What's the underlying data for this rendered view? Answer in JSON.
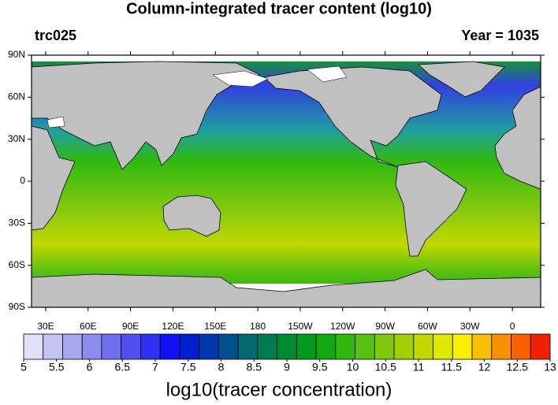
{
  "chart_data": {
    "type": "map",
    "title": "Column-integrated tracer content (log10)",
    "left_label": "trc025",
    "right_label": "Year = 1035",
    "lonlim": [
      20,
      380
    ],
    "latlim": [
      -90,
      90
    ],
    "latticks": [
      {
        "value": 90,
        "label": "90N"
      },
      {
        "value": 60,
        "label": "60N"
      },
      {
        "value": 30,
        "label": "30N"
      },
      0,
      {
        "value": -30,
        "label": "30S"
      },
      {
        "value": -60,
        "label": "60S"
      },
      {
        "value": -90,
        "label": "90S"
      }
    ],
    "lonticks": [
      {
        "value": 30,
        "label": "30E"
      },
      {
        "value": 60,
        "label": "60E"
      },
      {
        "value": 90,
        "label": "90E"
      },
      {
        "value": 120,
        "label": "120E"
      },
      {
        "value": 150,
        "label": "150E"
      },
      180,
      {
        "value": 210,
        "label": "150W"
      },
      {
        "value": 240,
        "label": "120W"
      },
      {
        "value": 270,
        "label": "90W"
      },
      {
        "value": 300,
        "label": "60W"
      },
      {
        "value": 330,
        "label": "30W"
      },
      {
        "value": 360,
        "label": "0"
      }
    ],
    "colorbar": {
      "title": "log10(tracer concentration)",
      "lim": [
        5,
        13
      ],
      "ticks": [
        5,
        5.5,
        6,
        6.5,
        7,
        7.5,
        8,
        8.5,
        9,
        9.5,
        10,
        10.5,
        11,
        11.5,
        12,
        12.5,
        13
      ],
      "colors": [
        "#e0e0f8",
        "#c4c4f4",
        "#a8a8f0",
        "#8c8cee",
        "#6e6ef0",
        "#5050f2",
        "#3030f4",
        "#1010f2",
        "#0020d0",
        "#0038b0",
        "#005090",
        "#006a70",
        "#007a50",
        "#008a30",
        "#009a20",
        "#10aa10",
        "#30b810",
        "#58c010",
        "#80c810",
        "#a0d000",
        "#c0d800",
        "#e0e800",
        "#f8f000",
        "#f8c000",
        "#f89000",
        "#f86000",
        "#f02000"
      ]
    }
  }
}
